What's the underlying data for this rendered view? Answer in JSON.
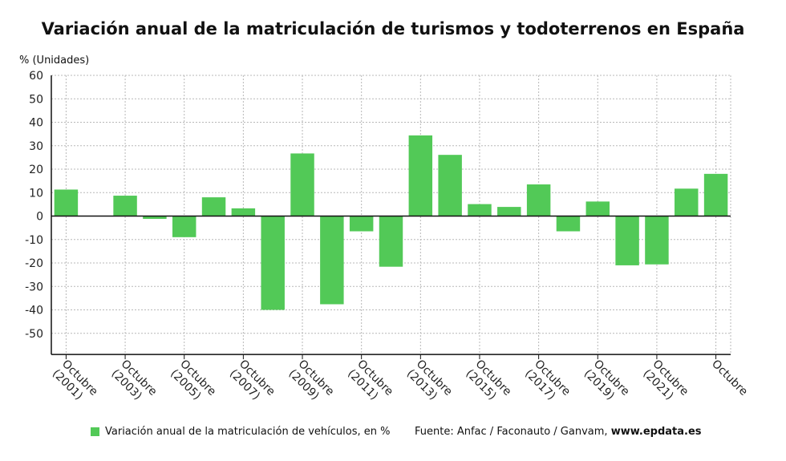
{
  "chart_data": {
    "type": "bar",
    "title": "Variación anual de la matriculación de turismos y todoterrenos en España",
    "ylabel": "% (Unidades)",
    "ylim": [
      -59,
      60
    ],
    "yticks": [
      60,
      50,
      40,
      30,
      20,
      10,
      0,
      -10,
      -20,
      -30,
      -40,
      -50
    ],
    "grid": true,
    "color": "#52c957",
    "x_labels": [
      "Octubre (2001)",
      "Octubre (2003)",
      "Octubre (2005)",
      "Octubre (2007)",
      "Octubre (2009)",
      "Octubre (2011)",
      "Octubre (2013)",
      "Octubre (2015)",
      "Octubre (2017)",
      "Octubre (2019)",
      "Octubre (2021)",
      "Octubre"
    ],
    "series": [
      {
        "name": "Variación anual de la matriculación de vehículos, en %",
        "values": [
          11.3,
          null,
          8.7,
          -1.2,
          -9.0,
          8.0,
          3.3,
          -40.0,
          26.7,
          -37.6,
          -6.5,
          -21.6,
          34.4,
          26.1,
          5.1,
          3.9,
          13.5,
          -6.5,
          6.2,
          -21.0,
          -20.6,
          11.7,
          18.0
        ]
      }
    ],
    "legend_position": "bottom-left"
  },
  "legend": {
    "label": "Variación anual de la matriculación de vehículos, en %",
    "color": "#52c957"
  },
  "source": {
    "prefix": "Fuente: Anfac / Faconauto / Ganvam, ",
    "site": "www.epdata.es"
  }
}
